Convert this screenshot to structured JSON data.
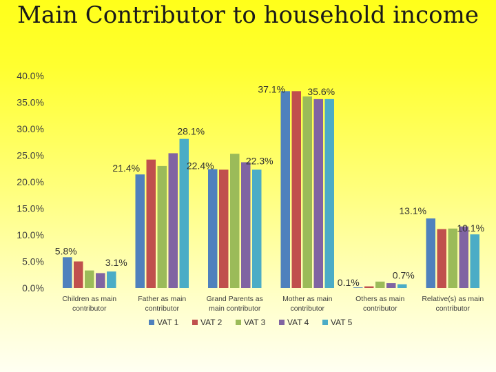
{
  "title": "Main Contributor to household income",
  "chart_data": {
    "type": "bar",
    "categories": [
      "Children as main contributor",
      "Father as main contributor",
      "Grand Parents as main contributor",
      "Mother as main contributor",
      "Others as main contributor",
      "Relative(s) as main contributor"
    ],
    "category_lines": [
      [
        "Children as main",
        "contributor"
      ],
      [
        "Father as main",
        "contributor"
      ],
      [
        "Grand Parents as",
        "main contributor"
      ],
      [
        "Mother as main",
        "contributor"
      ],
      [
        "Others as main",
        "contributor"
      ],
      [
        "Relative(s) as main",
        "contributor"
      ]
    ],
    "series": [
      {
        "name": "VAT 1",
        "color": "#4f81bd",
        "values": [
          5.8,
          21.4,
          22.4,
          37.1,
          0.1,
          13.1
        ]
      },
      {
        "name": "VAT 2",
        "color": "#c0504d",
        "values": [
          5.0,
          24.2,
          22.3,
          37.1,
          0.3,
          11.1
        ]
      },
      {
        "name": "VAT 3",
        "color": "#9bbb59",
        "values": [
          3.3,
          23.0,
          25.3,
          36.1,
          1.2,
          11.2
        ]
      },
      {
        "name": "VAT 4",
        "color": "#8064a2",
        "values": [
          2.8,
          25.4,
          23.7,
          35.6,
          0.9,
          11.6
        ]
      },
      {
        "name": "VAT 5",
        "color": "#4bacc6",
        "values": [
          3.1,
          28.1,
          22.3,
          35.6,
          0.7,
          10.1
        ]
      }
    ],
    "data_labels": [
      {
        "text": "5.8%",
        "category": 0,
        "series": 0
      },
      {
        "text": "3.1%",
        "category": 0,
        "series": 4
      },
      {
        "text": "21.4%",
        "category": 1,
        "series": 0
      },
      {
        "text": "28.1%",
        "category": 1,
        "series": 4
      },
      {
        "text": "22.4%",
        "category": 2,
        "series": 0
      },
      {
        "text": "22.3%",
        "category": 2,
        "series": 4
      },
      {
        "text": "37.1%",
        "category": 3,
        "series": 0
      },
      {
        "text": "35.6%",
        "category": 3,
        "series": 4
      },
      {
        "text": "0.1%",
        "category": 4,
        "series": 0
      },
      {
        "text": "0.7%",
        "category": 4,
        "series": 4
      },
      {
        "text": "13.1%",
        "category": 5,
        "series": 0
      },
      {
        "text": "10.1%",
        "category": 5,
        "series": 4
      }
    ],
    "yticks": [
      "0.0%",
      "5.0%",
      "10.0%",
      "15.0%",
      "20.0%",
      "25.0%",
      "30.0%",
      "35.0%",
      "40.0%"
    ],
    "ylim": [
      0,
      40
    ],
    "legend_position": "bottom",
    "grid": false
  }
}
